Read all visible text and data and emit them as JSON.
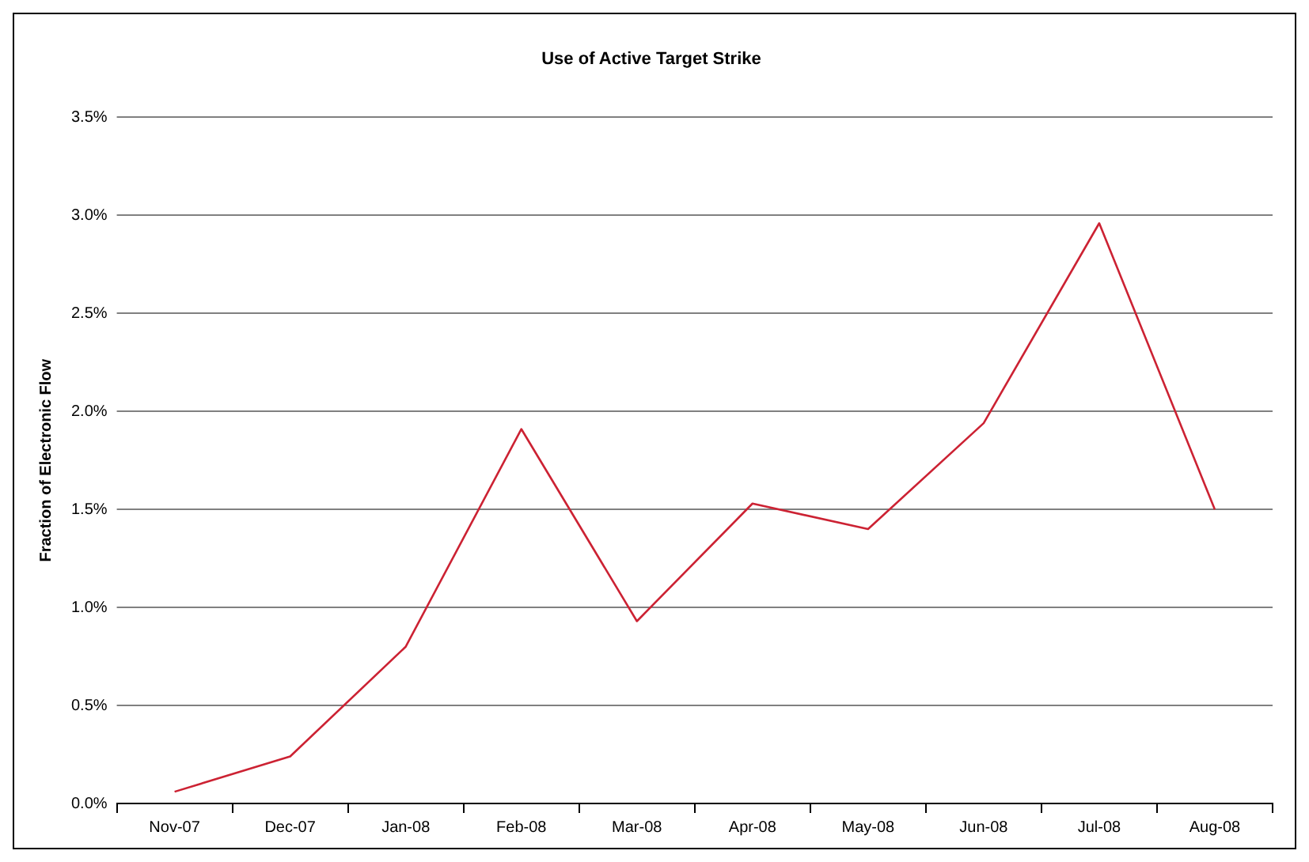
{
  "chart_data": {
    "type": "line",
    "title": "Use of Active Target Strike",
    "ylabel": "Fraction of Electronic Flow",
    "categories": [
      "Nov-07",
      "Dec-07",
      "Jan-08",
      "Feb-08",
      "Mar-08",
      "Apr-08",
      "May-08",
      "Jun-08",
      "Jul-08",
      "Aug-08"
    ],
    "series": [
      {
        "color": "#cc2233",
        "values": [
          0.06,
          0.24,
          0.8,
          1.91,
          0.93,
          1.53,
          1.4,
          1.94,
          2.96,
          1.5
        ]
      }
    ],
    "ylim": [
      0,
      3.5
    ],
    "yticks": [
      {
        "value": 0,
        "label": "0.0%"
      },
      {
        "value": 0.5,
        "label": "0.5%"
      },
      {
        "value": 1,
        "label": "1.0%"
      },
      {
        "value": 1.5,
        "label": "1.5%"
      },
      {
        "value": 2,
        "label": "2.0%"
      },
      {
        "value": 2.5,
        "label": "2.5%"
      },
      {
        "value": 3,
        "label": "3.0%"
      },
      {
        "value": 3.5,
        "label": "3.5%"
      }
    ],
    "grid": "y",
    "legend": false,
    "marker": "none",
    "line_style": "solid"
  }
}
